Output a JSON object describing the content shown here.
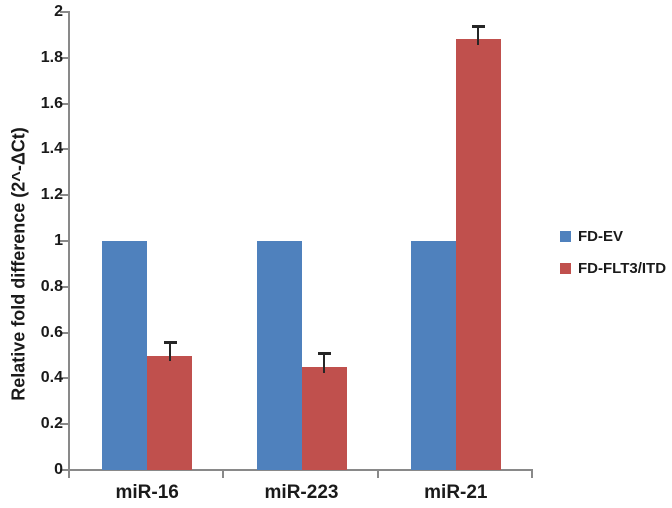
{
  "chart_data": {
    "type": "bar",
    "categories": [
      "miR-16",
      "miR-223",
      "miR-21"
    ],
    "series": [
      {
        "name": "FD-EV",
        "color": "#4F81BD",
        "values": [
          1,
          1,
          1
        ],
        "errors": [
          0,
          0,
          0
        ]
      },
      {
        "name": "FD-FLT3/ITD",
        "color": "#C0504D",
        "values": [
          0.5,
          0.45,
          1.88
        ],
        "errors": [
          0.06,
          0.06,
          0.06
        ]
      }
    ],
    "title": "",
    "xlabel": "",
    "ylabel": "Relative fold difference (2^-ΔCt)",
    "ylim": [
      0,
      2
    ],
    "ytick_step": 0.2,
    "ytick_labels": [
      "0",
      "0.2",
      "0.4",
      "0.6",
      "0.8",
      "1",
      "1.2",
      "1.4",
      "1.6",
      "1.8",
      "2"
    ],
    "grid": false,
    "legend_position": "right",
    "legend": [
      "FD-EV",
      "FD-FLT3/ITD"
    ],
    "colors": {
      "axis": "#898989",
      "text": "#1a1a1a",
      "error_bar": "#262626",
      "background": "#ffffff"
    }
  }
}
